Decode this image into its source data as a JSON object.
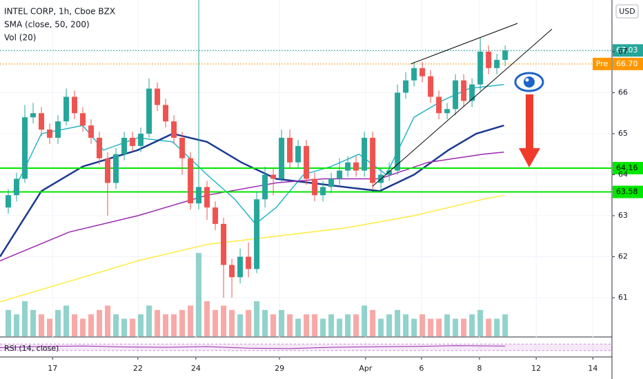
{
  "chart_data": {
    "type": "candlestick",
    "title": "INTEL CORP, 1h, Cboe BZX",
    "indicator_labels": [
      "SMA (close, 50, 200)",
      "Vol (20)"
    ],
    "currency": "USD",
    "xlim": [
      0,
      147.8
    ],
    "xticks": [
      {
        "value": 12.7,
        "label": "17"
      },
      {
        "value": 33.3,
        "label": "22"
      },
      {
        "value": 47.3,
        "label": "24"
      },
      {
        "value": 67.5,
        "label": "29"
      },
      {
        "value": 88.3,
        "label": "Apr"
      },
      {
        "value": 101.8,
        "label": "6"
      },
      {
        "value": 115.8,
        "label": "8"
      },
      {
        "value": 129.5,
        "label": "12"
      },
      {
        "value": 143.2,
        "label": "14"
      }
    ],
    "ylim": [
      60.06,
      68.26
    ],
    "yticks": [
      61,
      62,
      63,
      64,
      65,
      66,
      67
    ],
    "up_color": "#26a69a",
    "down_color": "#ef5350",
    "x": [
      2,
      4,
      6,
      8,
      10,
      12,
      14,
      16,
      18,
      20,
      22,
      24,
      26,
      28,
      30,
      32,
      34,
      36,
      38,
      40,
      42,
      44,
      46,
      48,
      50,
      52,
      54,
      56,
      58,
      60,
      62,
      64,
      66,
      68,
      70,
      72,
      74,
      76,
      78,
      80,
      82,
      84,
      86,
      88,
      90,
      92,
      94,
      96,
      98,
      100,
      102,
      104,
      106,
      108,
      110,
      112,
      114,
      116,
      118,
      120,
      122
    ],
    "open": [
      63.2,
      63.5,
      63.9,
      65.4,
      65.5,
      65.1,
      64.9,
      65.3,
      65.9,
      65.5,
      65.2,
      64.9,
      64.4,
      63.8,
      64.5,
      64.9,
      64.7,
      65.0,
      66.1,
      65.7,
      65.3,
      64.9,
      64.4,
      63.3,
      63.7,
      63.2,
      62.8,
      61.8,
      61.5,
      62.0,
      61.7,
      63.4,
      64.0,
      63.9,
      64.9,
      64.3,
      64.7,
      63.9,
      63.5,
      63.7,
      63.9,
      64.1,
      64.3,
      64.1,
      64.9,
      63.8,
      64.0,
      64.1,
      66.0,
      66.3,
      66.6,
      66.4,
      65.9,
      65.5,
      65.6,
      66.3,
      65.8,
      66.2,
      67.0,
      66.6,
      66.8
    ],
    "high": [
      63.65,
      64.05,
      65.7,
      65.75,
      65.65,
      65.25,
      65.45,
      66.1,
      66.05,
      65.65,
      65.35,
      65.05,
      64.55,
      64.65,
      65.05,
      65.05,
      65.15,
      66.35,
      66.25,
      65.85,
      65.45,
      65.05,
      64.55,
      68.45,
      63.85,
      63.35,
      62.95,
      61.95,
      62.2,
      62.35,
      63.6,
      64.2,
      64.15,
      65.1,
      65.1,
      64.85,
      64.85,
      64.05,
      63.85,
      64.05,
      64.4,
      64.45,
      64.45,
      65.05,
      65.05,
      64.15,
      64.3,
      66.2,
      66.5,
      66.75,
      66.75,
      66.55,
      66.05,
      65.75,
      66.45,
      66.45,
      66.35,
      67.35,
      67.15,
      66.95,
      67.15
    ],
    "low": [
      63.05,
      63.35,
      63.8,
      65.25,
      64.95,
      64.75,
      64.75,
      65.2,
      65.35,
      65.05,
      64.75,
      64.25,
      63.0,
      63.65,
      64.35,
      64.55,
      64.55,
      64.9,
      65.55,
      65.15,
      64.75,
      64.0,
      63.15,
      63.15,
      62.9,
      62.65,
      61.0,
      61.0,
      61.35,
      61.5,
      61.6,
      63.2,
      63.5,
      63.8,
      64.15,
      64.15,
      63.75,
      63.35,
      63.35,
      63.55,
      63.75,
      63.95,
      63.95,
      63.95,
      63.65,
      63.65,
      63.85,
      64.0,
      65.85,
      66.15,
      66.25,
      65.75,
      65.35,
      65.35,
      65.45,
      65.65,
      65.65,
      66.05,
      66.45,
      66.45,
      66.65
    ],
    "close": [
      63.5,
      63.9,
      65.4,
      65.5,
      65.1,
      64.9,
      65.3,
      65.9,
      65.5,
      65.2,
      64.9,
      64.4,
      63.8,
      64.5,
      64.9,
      64.7,
      65.0,
      66.1,
      65.7,
      65.3,
      64.9,
      64.4,
      63.3,
      63.7,
      63.2,
      62.8,
      61.8,
      61.5,
      62.0,
      61.7,
      63.4,
      64.0,
      63.9,
      64.9,
      64.3,
      64.7,
      63.9,
      63.5,
      63.7,
      63.9,
      64.1,
      64.3,
      64.1,
      64.9,
      63.8,
      64.0,
      64.1,
      66.0,
      66.3,
      66.6,
      66.4,
      65.9,
      65.5,
      65.6,
      66.3,
      65.8,
      66.2,
      67.0,
      66.6,
      66.8,
      67.03
    ],
    "volume": [
      3,
      2.5,
      4,
      3,
      2.5,
      2,
      3,
      3.5,
      2.5,
      2,
      2.5,
      3,
      3.5,
      2.5,
      2,
      2,
      2.5,
      3.5,
      3,
      2.5,
      2.5,
      3,
      3.5,
      9.5,
      4,
      3,
      3.5,
      3,
      2.5,
      3,
      4,
      3,
      2.5,
      3,
      2.5,
      2,
      2.5,
      2.5,
      2,
      2.5,
      2,
      2.5,
      2.5,
      3.5,
      3,
      2,
      2.5,
      3,
      2.5,
      2,
      2.5,
      2,
      2,
      2.5,
      2,
      2,
      2.5,
      3,
      2,
      2,
      2.5
    ],
    "volume_lim": [
      0,
      11
    ],
    "lines": [
      {
        "color": "#26b5c8",
        "x": [
          3.3,
          10,
          20,
          25,
          33.3,
          41.7,
          50,
          56.7,
          61.7,
          66.7,
          73.3,
          80,
          86.7,
          93.3,
          100,
          106.7,
          113.3,
          121.7
        ],
        "values": [
          63.6,
          65.0,
          65.2,
          64.6,
          64.9,
          64.8,
          64.0,
          63.4,
          62.8,
          63.2,
          64.0,
          64.2,
          64.5,
          64.0,
          65.4,
          65.8,
          66.1,
          66.2
        ]
      },
      {
        "color": "#1a3a8f",
        "x": [
          0,
          10,
          20,
          33.3,
          41.7,
          50,
          58.3,
          66.7,
          75,
          83.3,
          91.7,
          100,
          108.3,
          115,
          121.7
        ],
        "values": [
          62.0,
          63.6,
          64.2,
          64.6,
          65.0,
          64.8,
          64.3,
          63.9,
          63.8,
          63.7,
          63.6,
          64.0,
          64.6,
          65.0,
          65.2
        ]
      },
      {
        "color": "#9c27b0",
        "x": [
          0,
          16.7,
          33.3,
          50,
          66.7,
          78.3,
          91.7,
          103.3,
          116.7,
          121.7
        ],
        "values": [
          61.9,
          62.6,
          63.0,
          63.5,
          63.8,
          63.9,
          63.9,
          64.3,
          64.5,
          64.55
        ]
      },
      {
        "color": "#ffeb3b",
        "x": [
          0,
          16.7,
          33.3,
          50,
          66.7,
          83.3,
          100,
          116.7,
          121.7
        ],
        "values": [
          60.9,
          61.4,
          61.9,
          62.3,
          62.5,
          62.7,
          63.0,
          63.4,
          63.5
        ]
      }
    ],
    "trendlines": [
      {
        "x": [
          99.2,
          125
        ],
        "values": [
          66.7,
          67.69
        ]
      },
      {
        "x": [
          90,
          133.3
        ],
        "values": [
          63.72,
          67.55
        ]
      }
    ],
    "levels": [
      {
        "value": 67.03,
        "color": "#26a69a",
        "dashed": true
      },
      {
        "value": 66.7,
        "label": "66.70",
        "tag": "Pre",
        "color": "#ff9800",
        "dashed": true
      },
      {
        "value": 64.16,
        "color": "#00e600",
        "dashed": false
      },
      {
        "value": 63.58,
        "color": "#00e600",
        "dashed": false
      }
    ],
    "rsi": {
      "title": "RSI (14, close)",
      "ylim": [
        0,
        100
      ],
      "band": [
        30,
        70
      ],
      "x": [
        0,
        10,
        20,
        30,
        40,
        50,
        60,
        70,
        80,
        90,
        100,
        110,
        122
      ],
      "values": [
        48,
        55,
        58,
        52,
        50,
        54,
        45,
        42,
        50,
        53,
        55,
        60,
        57
      ]
    }
  }
}
